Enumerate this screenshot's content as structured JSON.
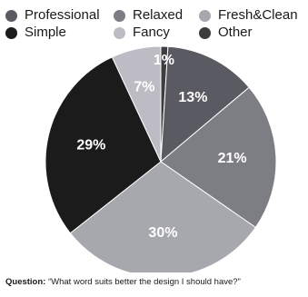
{
  "chart_data": {
    "type": "pie",
    "title": "",
    "slices": [
      {
        "label": "Other",
        "value": 1,
        "display": "1%",
        "color": "#3d3d3d",
        "text_color": "#ffffff"
      },
      {
        "label": "Professional",
        "value": 13,
        "display": "13%",
        "color": "#5a5a62",
        "text_color": "#ffffff"
      },
      {
        "label": "Relaxed",
        "value": 21,
        "display": "21%",
        "color": "#7c7e84",
        "text_color": "#ffffff"
      },
      {
        "label": "Fresh&Clean",
        "value": 30,
        "display": "30%",
        "color": "#a6a8ad",
        "text_color": "#ffffff"
      },
      {
        "label": "Simple",
        "value": 29,
        "display": "29%",
        "color": "#1b1b1b",
        "text_color": "#ffffff"
      },
      {
        "label": "Fancy",
        "value": 7,
        "display": "7%",
        "color": "#bdbcc4",
        "text_color": "#ffffff"
      }
    ],
    "start_angle_deg": 0,
    "direction": "clockwise",
    "legend_position": "top"
  },
  "legend": {
    "items": [
      {
        "label": "Professional",
        "color": "#5a5a62"
      },
      {
        "label": "Relaxed",
        "color": "#7c7e84"
      },
      {
        "label": "Fresh&Clean",
        "color": "#a6a8ad"
      },
      {
        "label": "Simple",
        "color": "#1b1b1b"
      },
      {
        "label": "Fancy",
        "color": "#bdbcc4"
      },
      {
        "label": "Other",
        "color": "#3d3d3d"
      }
    ]
  },
  "footnote": {
    "prefix": "Question:",
    "text": " “What word suits better the design I should have?”"
  }
}
